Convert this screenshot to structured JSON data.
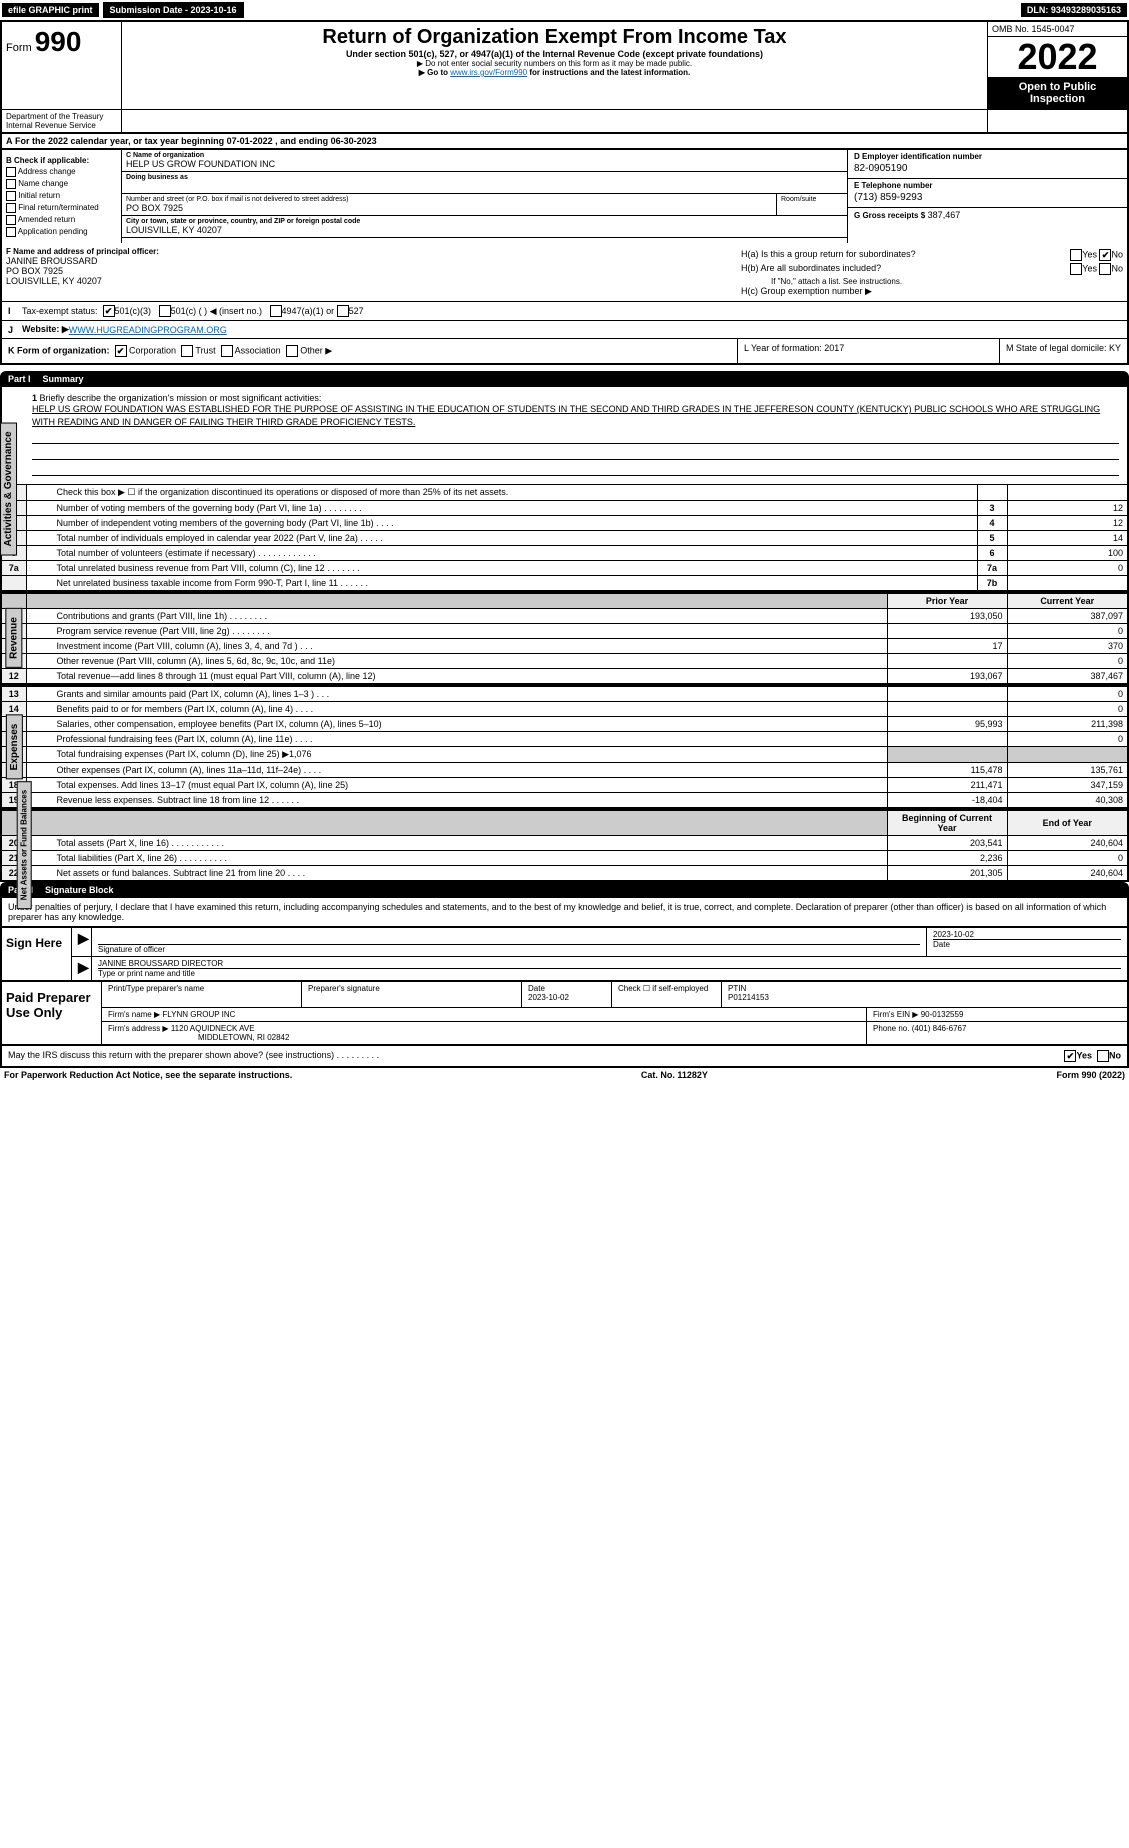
{
  "topbar": {
    "efile": "efile GRAPHIC print",
    "submission": "Submission Date - 2023-10-16",
    "dln": "DLN: 93493289035163"
  },
  "header": {
    "form_prefix": "Form",
    "form_num": "990",
    "title": "Return of Organization Exempt From Income Tax",
    "subtitle": "Under section 501(c), 527, or 4947(a)(1) of the Internal Revenue Code (except private foundations)",
    "note1": "▶ Do not enter social security numbers on this form as it may be made public.",
    "note2_pre": "▶ Go to ",
    "note2_link": "www.irs.gov/Form990",
    "note2_post": " for instructions and the latest information.",
    "omb": "OMB No. 1545-0047",
    "year": "2022",
    "open_pub": "Open to Public Inspection",
    "dept": "Department of the Treasury Internal Revenue Service"
  },
  "a_line": "For the 2022 calendar year, or tax year beginning 07-01-2022    , and ending 06-30-2023",
  "b_checks": {
    "hdr": "B Check if applicable:",
    "addr": "Address change",
    "name": "Name change",
    "init": "Initial return",
    "final": "Final return/terminated",
    "amend": "Amended return",
    "app": "Application pending"
  },
  "c": {
    "lbl": "C Name of organization",
    "name": "HELP US GROW FOUNDATION INC",
    "dba_lbl": "Doing business as",
    "addr_lbl": "Number and street (or P.O. box if mail is not delivered to street address)",
    "room_lbl": "Room/suite",
    "addr": "PO BOX 7925",
    "city_lbl": "City or town, state or province, country, and ZIP or foreign postal code",
    "city": "LOUISVILLE, KY  40207"
  },
  "d": {
    "lbl": "D Employer identification number",
    "val": "82-0905190"
  },
  "e": {
    "lbl": "E Telephone number",
    "val": "(713) 859-9293"
  },
  "g": {
    "lbl": "G Gross receipts $",
    "val": "387,467"
  },
  "f": {
    "lbl": "F Name and address of principal officer:",
    "name": "JANINE BROUSSARD",
    "addr1": "PO BOX 7925",
    "addr2": "LOUISVILLE, KY  40207"
  },
  "h": {
    "a": "H(a)  Is this a group return for subordinates?",
    "b": "H(b)  Are all subordinates included?",
    "b_note": "If \"No,\" attach a list. See instructions.",
    "c": "H(c)  Group exemption number ▶",
    "yes": "Yes",
    "no": "No"
  },
  "i": {
    "lbl": "I",
    "tax": "Tax-exempt status:",
    "c3": "501(c)(3)",
    "c": "501(c) (  ) ◀ (insert no.)",
    "a1": "4947(a)(1) or",
    "527": "527"
  },
  "j": {
    "lbl": "J",
    "web": "Website: ▶",
    "url": " WWW.HUGREADINGPROGRAM.ORG"
  },
  "k": {
    "lbl": "K Form of organization:",
    "corp": "Corporation",
    "trust": "Trust",
    "assoc": "Association",
    "other": "Other ▶",
    "l": "L Year of formation: 2017",
    "m": "M State of legal domicile: KY"
  },
  "part1": {
    "num": "Part I",
    "title": "Summary"
  },
  "mission": {
    "n": "1",
    "lbl": "Briefly describe the organization's mission or most significant activities:",
    "text": "HELP US GROW FOUNDATION WAS ESTABLISHED FOR THE PURPOSE OF ASSISTING IN THE EDUCATION OF STUDENTS IN THE SECOND AND THIRD GRADES IN THE JEFFERESON COUNTY (KENTUCKY) PUBLIC SCHOOLS WHO ARE STRUGGLING WITH READING AND IN DANGER OF FAILING THEIR THIRD GRADE PROFICIENCY TESTS."
  },
  "vlabels": {
    "ag": "Activities & Governance",
    "rev": "Revenue",
    "exp": "Expenses",
    "na": "Net Assets or Fund Balances"
  },
  "lines_ag": [
    {
      "n": "2",
      "t": "Check this box ▶ ☐ if the organization discontinued its operations or disposed of more than 25% of its net assets.",
      "cn": "",
      "v": ""
    },
    {
      "n": "3",
      "t": "Number of voting members of the governing body (Part VI, line 1a)  .   .   .   .   .   .   .   .",
      "cn": "3",
      "v": "12"
    },
    {
      "n": "4",
      "t": "Number of independent voting members of the governing body (Part VI, line 1b)   .   .   .   .",
      "cn": "4",
      "v": "12"
    },
    {
      "n": "5",
      "t": "Total number of individuals employed in calendar year 2022 (Part V, line 2a)  .   .   .   .   .",
      "cn": "5",
      "v": "14"
    },
    {
      "n": "6",
      "t": "Total number of volunteers (estimate if necessary)   .   .   .   .   .   .   .   .   .   .   .   .",
      "cn": "6",
      "v": "100"
    },
    {
      "n": "7a",
      "t": "Total unrelated business revenue from Part VIII, column (C), line 12  .   .   .   .   .   .   .",
      "cn": "7a",
      "v": "0"
    },
    {
      "n": "",
      "t": "Net unrelated business taxable income from Form 990-T, Part I, line 11   .   .   .   .   .   .",
      "cn": "7b",
      "v": ""
    }
  ],
  "col_hdrs": {
    "py": "Prior Year",
    "cy": "Current Year",
    "boy": "Beginning of Current Year",
    "eoy": "End of Year"
  },
  "lines_rev": [
    {
      "n": "8",
      "t": "Contributions and grants (Part VIII, line 1h)   .   .   .   .   .   .   .   .",
      "py": "193,050",
      "cy": "387,097"
    },
    {
      "n": "9",
      "t": "Program service revenue (Part VIII, line 2g)  .   .   .   .   .   .   .   .",
      "py": "",
      "cy": "0"
    },
    {
      "n": "10",
      "t": "Investment income (Part VIII, column (A), lines 3, 4, and 7d )  .   .   .",
      "py": "17",
      "cy": "370"
    },
    {
      "n": "11",
      "t": "Other revenue (Part VIII, column (A), lines 5, 6d, 8c, 9c, 10c, and 11e)",
      "py": "",
      "cy": "0"
    },
    {
      "n": "12",
      "t": "Total revenue—add lines 8 through 11 (must equal Part VIII, column (A), line 12)",
      "py": "193,067",
      "cy": "387,467"
    }
  ],
  "lines_exp": [
    {
      "n": "13",
      "t": "Grants and similar amounts paid (Part IX, column (A), lines 1–3 )  .   .   .",
      "py": "",
      "cy": "0"
    },
    {
      "n": "14",
      "t": "Benefits paid to or for members (Part IX, column (A), line 4)  .   .   .   .",
      "py": "",
      "cy": "0"
    },
    {
      "n": "15",
      "t": "Salaries, other compensation, employee benefits (Part IX, column (A), lines 5–10)",
      "py": "95,993",
      "cy": "211,398"
    },
    {
      "n": "16a",
      "t": "Professional fundraising fees (Part IX, column (A), line 11e)  .   .   .   .",
      "py": "",
      "cy": "0"
    },
    {
      "n": "b",
      "t": "Total fundraising expenses (Part IX, column (D), line 25) ▶1,076",
      "py": "gray",
      "cy": "gray"
    },
    {
      "n": "17",
      "t": "Other expenses (Part IX, column (A), lines 11a–11d, 11f–24e)   .   .   .   .",
      "py": "115,478",
      "cy": "135,761"
    },
    {
      "n": "18",
      "t": "Total expenses. Add lines 13–17 (must equal Part IX, column (A), line 25)",
      "py": "211,471",
      "cy": "347,159"
    },
    {
      "n": "19",
      "t": "Revenue less expenses. Subtract line 18 from line 12  .   .   .   .   .   .",
      "py": "-18,404",
      "cy": "40,308"
    }
  ],
  "lines_na": [
    {
      "n": "20",
      "t": "Total assets (Part X, line 16)   .   .   .   .   .   .   .   .   .   .   .",
      "py": "203,541",
      "cy": "240,604"
    },
    {
      "n": "21",
      "t": "Total liabilities (Part X, line 26)   .   .   .   .   .   .   .   .   .   .",
      "py": "2,236",
      "cy": "0"
    },
    {
      "n": "22",
      "t": "Net assets or fund balances. Subtract line 21 from line 20   .   .   .   .",
      "py": "201,305",
      "cy": "240,604"
    }
  ],
  "part2": {
    "num": "Part II",
    "title": "Signature Block"
  },
  "sig": {
    "intro": "Under penalties of perjury, I declare that I have examined this return, including accompanying schedules and statements, and to the best of my knowledge and belief, it is true, correct, and complete. Declaration of preparer (other than officer) is based on all information of which preparer has any knowledge.",
    "sign_here": "Sign Here",
    "sig_lbl": "Signature of officer",
    "date_lbl": "Date",
    "date": "2023-10-02",
    "name": "JANINE BROUSSARD  DIRECTOR",
    "name_lbl": "Type or print name and title"
  },
  "prep": {
    "hdr": "Paid Preparer Use Only",
    "pname_lbl": "Print/Type preparer's name",
    "psig_lbl": "Preparer's signature",
    "pdate_lbl": "Date",
    "pdate": "2023-10-02",
    "chk_lbl": "Check ☐ if self-employed",
    "ptin_lbl": "PTIN",
    "ptin": "P01214153",
    "firm_lbl": "Firm's name    ▶",
    "firm": "FLYNN GROUP INC",
    "fein_lbl": "Firm's EIN ▶",
    "fein": "90-0132559",
    "faddr_lbl": "Firm's address ▶",
    "faddr1": "1120 AQUIDNECK AVE",
    "faddr2": "MIDDLETOWN, RI  02842",
    "phone_lbl": "Phone no.",
    "phone": "(401) 846-6767"
  },
  "footer": {
    "q": "May the IRS discuss this return with the preparer shown above? (see instructions)   .   .   .   .   .   .   .   .   .",
    "yes": "Yes",
    "no": "No",
    "pra": "For Paperwork Reduction Act Notice, see the separate instructions.",
    "cat": "Cat. No. 11282Y",
    "form": "Form 990 (2022)"
  }
}
